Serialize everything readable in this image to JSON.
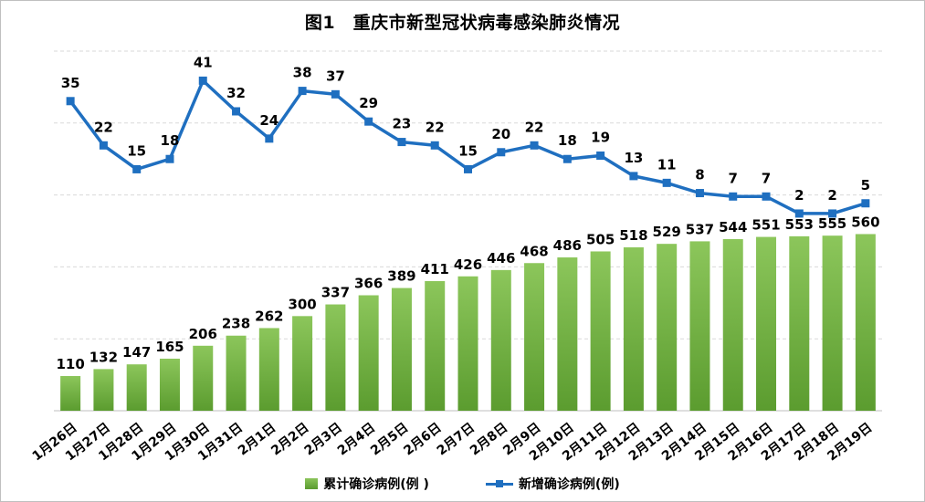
{
  "title": "图1　重庆市新型冠状病毒感染肺炎情况",
  "chart_data": {
    "type": "bar+line",
    "categories": [
      "1月26日",
      "1月27日",
      "1月28日",
      "1月29日",
      "1月30日",
      "1月31日",
      "2月1日",
      "2月2日",
      "2月3日",
      "2月4日",
      "2月5日",
      "2月6日",
      "2月7日",
      "2月8日",
      "2月9日",
      "2月10日",
      "2月11日",
      "2月12日",
      "2月13日",
      "2月14日",
      "2月15日",
      "2月16日",
      "2月17日",
      "2月18日",
      "2月19日"
    ],
    "series": [
      {
        "name": "累计确诊病例(例 )",
        "type": "bar",
        "color": "#70ad47",
        "values": [
          110,
          132,
          147,
          165,
          206,
          238,
          262,
          300,
          337,
          366,
          389,
          411,
          426,
          446,
          468,
          486,
          505,
          518,
          529,
          537,
          544,
          551,
          553,
          555,
          560
        ]
      },
      {
        "name": "新增确诊病例(例)",
        "type": "line",
        "color": "#1f6fc0",
        "values": [
          35,
          22,
          15,
          18,
          41,
          32,
          24,
          38,
          37,
          29,
          23,
          22,
          15,
          20,
          22,
          18,
          19,
          13,
          11,
          8,
          7,
          7,
          2,
          2,
          5
        ]
      }
    ],
    "grid": true,
    "legend": "bottom",
    "xlabel": "",
    "ylabel": ""
  }
}
